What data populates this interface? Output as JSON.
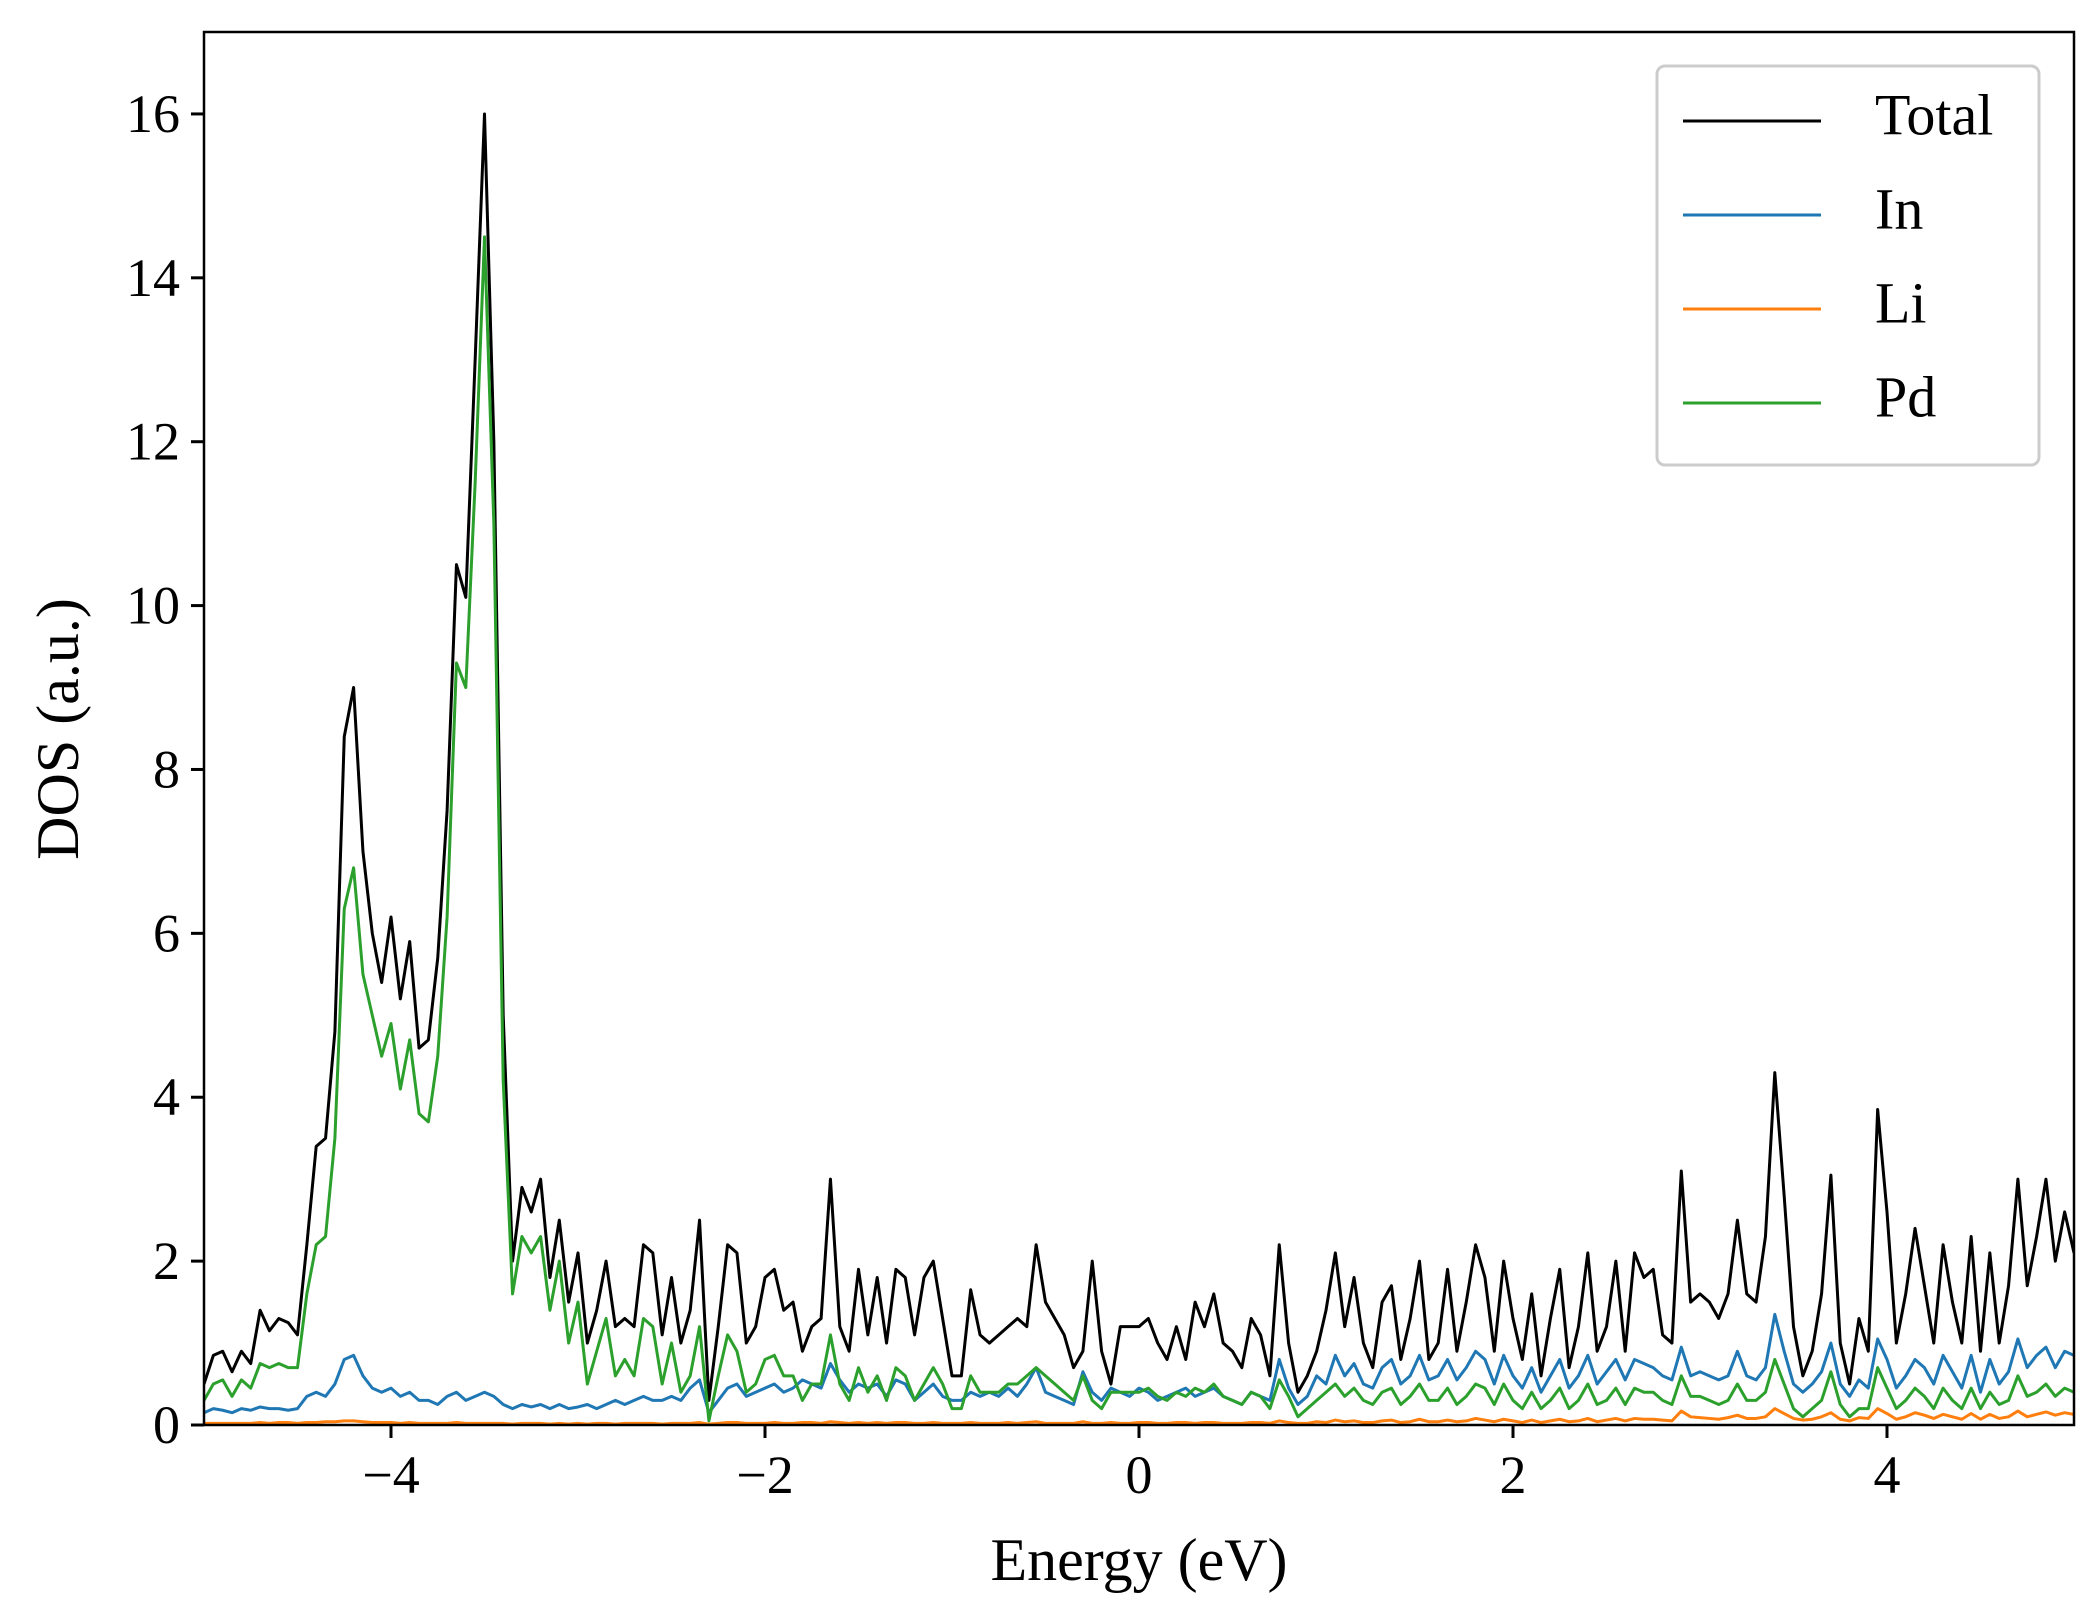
{
  "chart_data": {
    "type": "line",
    "xlabel": "Energy (eV)",
    "ylabel": "DOS (a.u.)",
    "xlim": [
      -5,
      5
    ],
    "ylim": [
      0,
      17
    ],
    "xticks": [
      {
        "value": -4,
        "label": "−4"
      },
      {
        "value": -2,
        "label": "−2"
      },
      0,
      2,
      4
    ],
    "yticks": [
      0,
      2,
      4,
      6,
      8,
      10,
      12,
      14,
      16
    ],
    "legend": "upper right",
    "grid": false,
    "x": [
      -5,
      -4.95,
      -4.9,
      -4.85,
      -4.8,
      -4.75,
      -4.7,
      -4.65,
      -4.6,
      -4.55,
      -4.5,
      -4.45,
      -4.4,
      -4.35,
      -4.3,
      -4.25,
      -4.2,
      -4.15,
      -4.1,
      -4.05,
      -4,
      -3.95,
      -3.9,
      -3.85,
      -3.8,
      -3.75,
      -3.7,
      -3.65,
      -3.6,
      -3.55,
      -3.5,
      -3.45,
      -3.4,
      -3.35,
      -3.3,
      -3.25,
      -3.2,
      -3.15,
      -3.1,
      -3.05,
      -3,
      -2.95,
      -2.9,
      -2.85,
      -2.8,
      -2.75,
      -2.7,
      -2.65,
      -2.6,
      -2.55,
      -2.5,
      -2.45,
      -2.4,
      -2.35,
      -2.3,
      -2.25,
      -2.2,
      -2.15,
      -2.1,
      -2.05,
      -2,
      -1.95,
      -1.9,
      -1.85,
      -1.8,
      -1.75,
      -1.7,
      -1.65,
      -1.6,
      -1.55,
      -1.5,
      -1.45,
      -1.4,
      -1.35,
      -1.3,
      -1.25,
      -1.2,
      -1.15,
      -1.1,
      -1.05,
      -1,
      -0.95,
      -0.9,
      -0.85,
      -0.8,
      -0.75,
      -0.7,
      -0.65,
      -0.6,
      -0.55,
      -0.5,
      -0.45,
      -0.4,
      -0.35,
      -0.3,
      -0.25,
      -0.2,
      -0.15,
      -0.1,
      -0.05,
      0,
      0.05,
      0.1,
      0.15,
      0.2,
      0.25,
      0.3,
      0.35,
      0.4,
      0.45,
      0.5,
      0.55,
      0.6,
      0.65,
      0.7,
      0.75,
      0.8,
      0.85,
      0.9,
      0.95,
      1,
      1.05,
      1.1,
      1.15,
      1.2,
      1.25,
      1.3,
      1.35,
      1.4,
      1.45,
      1.5,
      1.55,
      1.6,
      1.65,
      1.7,
      1.75,
      1.8,
      1.85,
      1.9,
      1.95,
      2,
      2.05,
      2.1,
      2.15,
      2.2,
      2.25,
      2.3,
      2.35,
      2.4,
      2.45,
      2.5,
      2.55,
      2.6,
      2.65,
      2.7,
      2.75,
      2.8,
      2.85,
      2.9,
      2.95,
      3,
      3.05,
      3.1,
      3.15,
      3.2,
      3.25,
      3.3,
      3.35,
      3.4,
      3.45,
      3.5,
      3.55,
      3.6,
      3.65,
      3.7,
      3.75,
      3.8,
      3.85,
      3.9,
      3.95,
      4,
      4.05,
      4.1,
      4.15,
      4.2,
      4.25,
      4.3,
      4.35,
      4.4,
      4.45,
      4.5,
      4.55,
      4.6,
      4.65,
      4.7,
      4.75,
      4.8,
      4.85,
      4.9,
      4.95,
      5
    ],
    "series": [
      {
        "name": "Total",
        "color": "#000000",
        "values": [
          0.5,
          0.85,
          0.9,
          0.65,
          0.9,
          0.75,
          1.4,
          1.15,
          1.3,
          1.25,
          1.1,
          2.2,
          3.4,
          3.5,
          4.8,
          8.4,
          9.0,
          7.0,
          6.0,
          5.4,
          6.2,
          5.2,
          5.9,
          4.6,
          4.7,
          5.7,
          7.5,
          10.5,
          10.1,
          13.0,
          16.0,
          12.0,
          5.0,
          2.0,
          2.9,
          2.6,
          3.0,
          1.8,
          2.5,
          1.5,
          2.1,
          1.0,
          1.4,
          2.0,
          1.2,
          1.3,
          1.2,
          2.2,
          2.1,
          1.1,
          1.8,
          1.0,
          1.4,
          2.5,
          0.3,
          1.2,
          2.2,
          2.1,
          1.0,
          1.2,
          1.8,
          1.9,
          1.4,
          1.5,
          0.9,
          1.2,
          1.3,
          3.0,
          1.2,
          0.9,
          1.9,
          1.1,
          1.8,
          1.0,
          1.9,
          1.8,
          1.1,
          1.8,
          2.0,
          1.3,
          0.6,
          0.6,
          1.65,
          1.1,
          1.0,
          1.1,
          1.2,
          1.3,
          1.2,
          2.2,
          1.5,
          1.3,
          1.1,
          0.7,
          0.9,
          2.0,
          0.9,
          0.5,
          1.2,
          1.2,
          1.2,
          1.3,
          1.0,
          0.8,
          1.2,
          0.8,
          1.5,
          1.2,
          1.6,
          1.0,
          0.9,
          0.7,
          1.3,
          1.1,
          0.6,
          2.2,
          1.0,
          0.4,
          0.6,
          0.9,
          1.4,
          2.1,
          1.2,
          1.8,
          1.0,
          0.7,
          1.5,
          1.7,
          0.8,
          1.3,
          2.0,
          0.8,
          1.0,
          1.9,
          0.9,
          1.5,
          2.2,
          1.8,
          0.9,
          2.0,
          1.3,
          0.8,
          1.6,
          0.6,
          1.3,
          1.9,
          0.7,
          1.2,
          2.1,
          0.9,
          1.2,
          2.0,
          0.9,
          2.1,
          1.8,
          1.9,
          1.1,
          1.0,
          3.1,
          1.5,
          1.6,
          1.5,
          1.3,
          1.6,
          2.5,
          1.6,
          1.5,
          2.3,
          4.3,
          2.8,
          1.2,
          0.6,
          0.9,
          1.6,
          3.05,
          1.0,
          0.5,
          1.3,
          0.9,
          3.85,
          2.6,
          1.0,
          1.6,
          2.4,
          1.7,
          1.0,
          2.2,
          1.5,
          1.0,
          2.3,
          0.9,
          2.1,
          1.0,
          1.7,
          3.0,
          1.7,
          2.3,
          3.0,
          2.0,
          2.6,
          2.1
        ]
      },
      {
        "name": "In",
        "color": "#1f77b4",
        "values": [
          0.15,
          0.2,
          0.18,
          0.15,
          0.2,
          0.18,
          0.22,
          0.2,
          0.2,
          0.18,
          0.2,
          0.35,
          0.4,
          0.35,
          0.5,
          0.8,
          0.85,
          0.6,
          0.45,
          0.4,
          0.45,
          0.35,
          0.4,
          0.3,
          0.3,
          0.25,
          0.35,
          0.4,
          0.3,
          0.35,
          0.4,
          0.35,
          0.25,
          0.2,
          0.25,
          0.22,
          0.25,
          0.2,
          0.25,
          0.2,
          0.22,
          0.25,
          0.2,
          0.25,
          0.3,
          0.25,
          0.3,
          0.35,
          0.3,
          0.3,
          0.35,
          0.3,
          0.45,
          0.55,
          0.15,
          0.3,
          0.45,
          0.5,
          0.35,
          0.4,
          0.45,
          0.5,
          0.4,
          0.45,
          0.55,
          0.5,
          0.45,
          0.75,
          0.55,
          0.4,
          0.5,
          0.45,
          0.5,
          0.35,
          0.55,
          0.5,
          0.3,
          0.4,
          0.5,
          0.35,
          0.3,
          0.3,
          0.4,
          0.35,
          0.4,
          0.35,
          0.45,
          0.35,
          0.5,
          0.7,
          0.4,
          0.35,
          0.3,
          0.25,
          0.65,
          0.4,
          0.3,
          0.45,
          0.4,
          0.35,
          0.45,
          0.4,
          0.3,
          0.35,
          0.4,
          0.45,
          0.35,
          0.4,
          0.45,
          0.35,
          0.3,
          0.25,
          0.4,
          0.35,
          0.3,
          0.8,
          0.45,
          0.25,
          0.35,
          0.6,
          0.5,
          0.85,
          0.6,
          0.75,
          0.5,
          0.45,
          0.7,
          0.8,
          0.5,
          0.6,
          0.85,
          0.55,
          0.6,
          0.8,
          0.55,
          0.7,
          0.9,
          0.8,
          0.5,
          0.85,
          0.6,
          0.45,
          0.7,
          0.4,
          0.6,
          0.8,
          0.45,
          0.6,
          0.85,
          0.5,
          0.65,
          0.8,
          0.55,
          0.8,
          0.75,
          0.7,
          0.6,
          0.55,
          0.95,
          0.6,
          0.65,
          0.6,
          0.55,
          0.6,
          0.9,
          0.6,
          0.55,
          0.7,
          1.35,
          0.9,
          0.5,
          0.4,
          0.5,
          0.65,
          1.0,
          0.5,
          0.35,
          0.55,
          0.45,
          1.05,
          0.8,
          0.45,
          0.6,
          0.8,
          0.7,
          0.5,
          0.85,
          0.65,
          0.45,
          0.85,
          0.4,
          0.8,
          0.5,
          0.65,
          1.05,
          0.7,
          0.85,
          0.95,
          0.7,
          0.9,
          0.85
        ]
      },
      {
        "name": "Li",
        "color": "#ff7f0e",
        "values": [
          0.02,
          0.02,
          0.02,
          0.02,
          0.02,
          0.02,
          0.03,
          0.02,
          0.03,
          0.03,
          0.02,
          0.03,
          0.03,
          0.04,
          0.04,
          0.05,
          0.05,
          0.04,
          0.03,
          0.03,
          0.03,
          0.02,
          0.03,
          0.02,
          0.02,
          0.02,
          0.02,
          0.03,
          0.02,
          0.02,
          0.02,
          0.02,
          0.02,
          0.01,
          0.02,
          0.02,
          0.02,
          0.01,
          0.02,
          0.01,
          0.02,
          0.01,
          0.02,
          0.02,
          0.01,
          0.02,
          0.02,
          0.02,
          0.02,
          0.01,
          0.02,
          0.02,
          0.02,
          0.03,
          0.01,
          0.02,
          0.03,
          0.03,
          0.02,
          0.02,
          0.02,
          0.03,
          0.02,
          0.02,
          0.03,
          0.03,
          0.02,
          0.04,
          0.03,
          0.02,
          0.03,
          0.02,
          0.03,
          0.02,
          0.03,
          0.03,
          0.02,
          0.02,
          0.03,
          0.02,
          0.02,
          0.02,
          0.03,
          0.02,
          0.02,
          0.02,
          0.03,
          0.02,
          0.03,
          0.04,
          0.02,
          0.02,
          0.02,
          0.02,
          0.04,
          0.02,
          0.02,
          0.03,
          0.02,
          0.02,
          0.03,
          0.03,
          0.02,
          0.02,
          0.03,
          0.03,
          0.02,
          0.03,
          0.03,
          0.02,
          0.02,
          0.02,
          0.03,
          0.03,
          0.02,
          0.05,
          0.03,
          0.02,
          0.02,
          0.04,
          0.03,
          0.06,
          0.04,
          0.05,
          0.03,
          0.03,
          0.05,
          0.06,
          0.03,
          0.04,
          0.07,
          0.04,
          0.04,
          0.06,
          0.04,
          0.05,
          0.08,
          0.06,
          0.04,
          0.07,
          0.05,
          0.03,
          0.06,
          0.03,
          0.05,
          0.07,
          0.04,
          0.05,
          0.08,
          0.04,
          0.06,
          0.08,
          0.05,
          0.08,
          0.07,
          0.07,
          0.06,
          0.05,
          0.17,
          0.1,
          0.09,
          0.08,
          0.07,
          0.09,
          0.12,
          0.08,
          0.08,
          0.1,
          0.2,
          0.14,
          0.08,
          0.06,
          0.07,
          0.1,
          0.15,
          0.07,
          0.05,
          0.09,
          0.08,
          0.2,
          0.14,
          0.07,
          0.1,
          0.15,
          0.12,
          0.08,
          0.13,
          0.1,
          0.07,
          0.14,
          0.07,
          0.13,
          0.08,
          0.1,
          0.17,
          0.1,
          0.13,
          0.16,
          0.12,
          0.15,
          0.13
        ]
      },
      {
        "name": "Pd",
        "color": "#2ca02c",
        "values": [
          0.3,
          0.5,
          0.55,
          0.35,
          0.55,
          0.45,
          0.75,
          0.7,
          0.75,
          0.7,
          0.7,
          1.6,
          2.2,
          2.3,
          3.5,
          6.3,
          6.8,
          5.5,
          5.0,
          4.5,
          4.9,
          4.1,
          4.7,
          3.8,
          3.7,
          4.5,
          6.2,
          9.3,
          9.0,
          11.5,
          14.5,
          11.0,
          4.2,
          1.6,
          2.3,
          2.1,
          2.3,
          1.4,
          2.0,
          1.0,
          1.5,
          0.5,
          0.9,
          1.3,
          0.6,
          0.8,
          0.6,
          1.3,
          1.2,
          0.5,
          1.0,
          0.4,
          0.6,
          1.2,
          0.05,
          0.6,
          1.1,
          0.9,
          0.4,
          0.5,
          0.8,
          0.85,
          0.6,
          0.6,
          0.3,
          0.5,
          0.5,
          1.1,
          0.5,
          0.3,
          0.7,
          0.4,
          0.6,
          0.3,
          0.7,
          0.6,
          0.3,
          0.5,
          0.7,
          0.5,
          0.2,
          0.2,
          0.6,
          0.4,
          0.4,
          0.4,
          0.5,
          0.5,
          0.6,
          0.7,
          0.6,
          0.5,
          0.4,
          0.3,
          0.6,
          0.3,
          0.2,
          0.4,
          0.4,
          0.4,
          0.4,
          0.45,
          0.35,
          0.3,
          0.4,
          0.35,
          0.45,
          0.4,
          0.5,
          0.35,
          0.3,
          0.25,
          0.4,
          0.35,
          0.2,
          0.55,
          0.35,
          0.1,
          0.2,
          0.3,
          0.4,
          0.5,
          0.35,
          0.45,
          0.3,
          0.25,
          0.4,
          0.45,
          0.25,
          0.35,
          0.5,
          0.3,
          0.3,
          0.45,
          0.25,
          0.35,
          0.5,
          0.45,
          0.25,
          0.5,
          0.3,
          0.2,
          0.4,
          0.2,
          0.3,
          0.45,
          0.2,
          0.3,
          0.5,
          0.25,
          0.3,
          0.45,
          0.25,
          0.45,
          0.4,
          0.4,
          0.3,
          0.25,
          0.6,
          0.35,
          0.35,
          0.3,
          0.25,
          0.3,
          0.5,
          0.3,
          0.3,
          0.4,
          0.8,
          0.5,
          0.2,
          0.1,
          0.2,
          0.3,
          0.65,
          0.25,
          0.1,
          0.2,
          0.2,
          0.7,
          0.45,
          0.2,
          0.3,
          0.45,
          0.35,
          0.2,
          0.45,
          0.3,
          0.2,
          0.45,
          0.2,
          0.4,
          0.25,
          0.3,
          0.6,
          0.35,
          0.4,
          0.5,
          0.35,
          0.45,
          0.4
        ]
      }
    ]
  }
}
